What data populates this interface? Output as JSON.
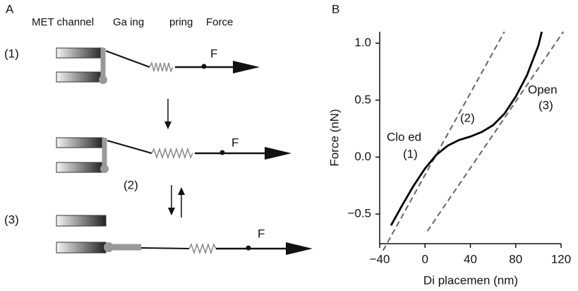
{
  "panel_a": {
    "label": "A",
    "headers": [
      "MET channel",
      "Ga ing",
      "pring",
      "Force"
    ],
    "states": [
      "(1)",
      "(2)",
      "(3)"
    ],
    "force_labels": [
      "F",
      "F",
      "F"
    ]
  },
  "chart_data": {
    "type": "line",
    "panel_label": "B",
    "x_label": "Di placemen (nm)",
    "y_label": "Force (nN)",
    "xlim": [
      -40,
      120
    ],
    "ylim": [
      -0.76,
      1.1
    ],
    "xticks": [
      {
        "value": -40,
        "label": "−40"
      },
      0,
      40,
      80,
      120
    ],
    "yticks": [
      {
        "value": 1,
        "label": "1.0"
      },
      0.5,
      {
        "value": 0,
        "label": "0.0"
      },
      {
        "value": -0.5,
        "label": "−0.5"
      }
    ],
    "annotations": [
      "Clo ed",
      "(1)",
      "(2)",
      "Open",
      "(3)"
    ],
    "series": [
      {
        "color": "#666666",
        "dashed": true,
        "x": [
          -37,
          70
        ],
        "values": [
          -0.82,
          1.1
        ]
      },
      {
        "color": "#666666",
        "dashed": true,
        "x": [
          2,
          122
        ],
        "values": [
          -0.65,
          1.1
        ]
      },
      {
        "color": "#000000",
        "dashed": false,
        "x": [
          -30,
          -20,
          -10,
          0,
          10,
          20,
          30,
          40,
          50,
          60,
          70,
          80,
          90,
          100,
          103
        ],
        "values": [
          -0.6,
          -0.42,
          -0.25,
          -0.1,
          0.02,
          0.1,
          0.15,
          0.18,
          0.22,
          0.28,
          0.38,
          0.53,
          0.72,
          0.98,
          1.1
        ]
      }
    ]
  }
}
